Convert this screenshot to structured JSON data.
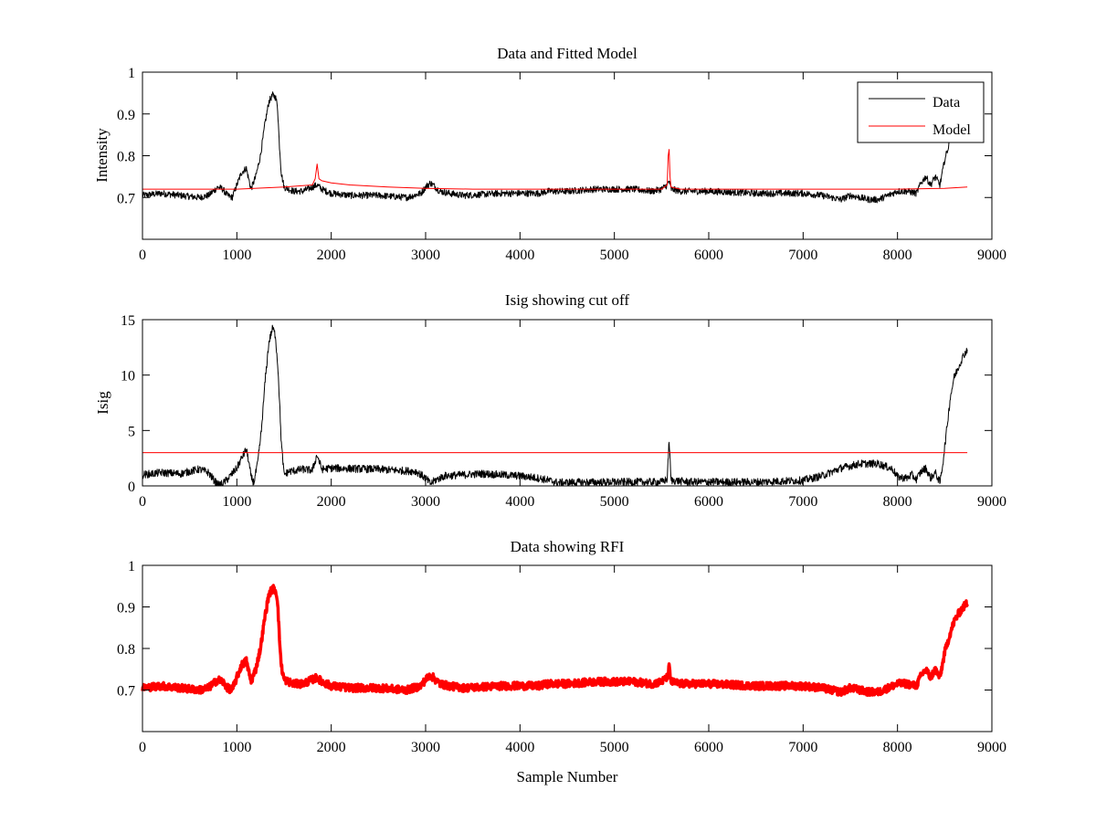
{
  "chart_data": [
    {
      "type": "line",
      "title": "Data and Fitted Model",
      "ylabel": "Intensity",
      "xlabel": "",
      "xlim": [
        0,
        9000
      ],
      "ylim": [
        0.6,
        1.0
      ],
      "xticks": [
        0,
        1000,
        2000,
        3000,
        4000,
        5000,
        6000,
        7000,
        8000,
        9000
      ],
      "xtick_labels": [
        "0",
        "1000",
        "2000",
        "3000",
        "4000",
        "5000",
        "6000",
        "7000",
        "8000",
        "9000"
      ],
      "yticks": [
        0.7,
        0.8,
        0.9,
        1.0
      ],
      "ytick_labels": [
        "0.7",
        "0.8",
        "0.9",
        "1"
      ],
      "legend": {
        "position": "top-right",
        "entries": [
          "Data",
          "Model"
        ]
      },
      "series": [
        {
          "name": "Data",
          "color": "#000000",
          "noise": 0.008,
          "x": [
            0,
            200,
            400,
            600,
            700,
            800,
            850,
            900,
            950,
            1000,
            1050,
            1100,
            1130,
            1150,
            1200,
            1250,
            1300,
            1340,
            1380,
            1410,
            1430,
            1450,
            1470,
            1500,
            1600,
            1700,
            1750,
            1800,
            1850,
            1900,
            2000,
            2200,
            2500,
            2800,
            2950,
            3000,
            3050,
            3080,
            3150,
            3250,
            3400,
            3800,
            4200,
            4300,
            4500,
            4800,
            5000,
            5200,
            5400,
            5500,
            5560,
            5580,
            5600,
            5700,
            6000,
            6500,
            7000,
            7200,
            7400,
            7500,
            7600,
            7700,
            7800,
            7900,
            8000,
            8100,
            8200,
            8250,
            8300,
            8350,
            8400,
            8450,
            8500,
            8550
          ],
          "y": [
            0.705,
            0.71,
            0.705,
            0.7,
            0.705,
            0.725,
            0.72,
            0.705,
            0.7,
            0.73,
            0.76,
            0.77,
            0.74,
            0.72,
            0.75,
            0.8,
            0.88,
            0.93,
            0.945,
            0.94,
            0.92,
            0.83,
            0.76,
            0.725,
            0.715,
            0.715,
            0.72,
            0.725,
            0.73,
            0.72,
            0.71,
            0.705,
            0.705,
            0.7,
            0.71,
            0.725,
            0.735,
            0.73,
            0.715,
            0.71,
            0.705,
            0.71,
            0.71,
            0.715,
            0.715,
            0.72,
            0.72,
            0.72,
            0.715,
            0.72,
            0.73,
            0.74,
            0.72,
            0.715,
            0.715,
            0.71,
            0.71,
            0.705,
            0.695,
            0.705,
            0.7,
            0.695,
            0.695,
            0.705,
            0.715,
            0.715,
            0.71,
            0.735,
            0.75,
            0.73,
            0.75,
            0.73,
            0.79,
            0.83
          ]
        },
        {
          "name": "Model",
          "color": "#ff0000",
          "noise": 0,
          "x": [
            0,
            1000,
            1500,
            1800,
            1830,
            1850,
            1870,
            1900,
            2000,
            2200,
            2600,
            3000,
            3500,
            4000,
            5000,
            5500,
            5560,
            5570,
            5580,
            5590,
            5600,
            5700,
            6000,
            7000,
            8000,
            8500,
            8740
          ],
          "y": [
            0.72,
            0.72,
            0.725,
            0.73,
            0.745,
            0.78,
            0.745,
            0.74,
            0.735,
            0.73,
            0.725,
            0.722,
            0.72,
            0.72,
            0.72,
            0.72,
            0.73,
            0.8,
            0.815,
            0.75,
            0.725,
            0.72,
            0.72,
            0.72,
            0.72,
            0.722,
            0.725
          ]
        }
      ]
    },
    {
      "type": "line",
      "title": "Isig showing cut off",
      "ylabel": "Isig",
      "xlabel": "",
      "xlim": [
        0,
        9000
      ],
      "ylim": [
        0,
        15
      ],
      "xticks": [
        0,
        1000,
        2000,
        3000,
        4000,
        5000,
        6000,
        7000,
        8000,
        9000
      ],
      "xtick_labels": [
        "0",
        "1000",
        "2000",
        "3000",
        "4000",
        "5000",
        "6000",
        "7000",
        "8000",
        "9000"
      ],
      "yticks": [
        0,
        5,
        10,
        15
      ],
      "ytick_labels": [
        "0",
        "5",
        "10",
        "15"
      ],
      "series": [
        {
          "name": "Isig",
          "color": "#000000",
          "noise": 0.35,
          "x": [
            0,
            200,
            400,
            600,
            700,
            750,
            800,
            850,
            900,
            1000,
            1050,
            1100,
            1120,
            1150,
            1180,
            1220,
            1260,
            1300,
            1340,
            1380,
            1410,
            1440,
            1470,
            1500,
            1550,
            1700,
            1800,
            1850,
            1900,
            2000,
            2500,
            2900,
            3000,
            3050,
            3100,
            3200,
            3600,
            4000,
            4200,
            4400,
            5000,
            5500,
            5560,
            5580,
            5600,
            5800,
            6500,
            7000,
            7200,
            7400,
            7600,
            7800,
            7950,
            8000,
            8100,
            8150,
            8200,
            8250,
            8300,
            8350,
            8400,
            8450,
            8480,
            8520,
            8560,
            8600,
            8650,
            8700,
            8740
          ],
          "y": [
            1.0,
            1.2,
            1.1,
            1.5,
            1.2,
            0.6,
            0.1,
            0.2,
            0.6,
            1.6,
            2.5,
            3.3,
            2.5,
            0.8,
            0.3,
            2.0,
            5.0,
            9.5,
            13.0,
            14.3,
            13.5,
            10.0,
            4.0,
            1.0,
            1.3,
            1.5,
            1.4,
            2.8,
            1.5,
            1.6,
            1.5,
            1.3,
            0.7,
            0.2,
            0.5,
            0.9,
            1.1,
            0.9,
            0.7,
            0.3,
            0.35,
            0.35,
            0.6,
            4.2,
            0.5,
            0.35,
            0.35,
            0.5,
            0.9,
            1.6,
            2.0,
            2.0,
            1.5,
            0.8,
            0.7,
            1.0,
            0.6,
            1.3,
            1.6,
            0.7,
            1.2,
            0.3,
            2.0,
            5.0,
            8.0,
            9.8,
            10.8,
            11.8,
            12.3
          ]
        },
        {
          "name": "cut off",
          "color": "#ff0000",
          "noise": 0,
          "x": [
            0,
            8740
          ],
          "y": [
            3,
            3
          ]
        }
      ]
    },
    {
      "type": "line",
      "title": "Data showing RFI",
      "ylabel": "",
      "xlabel": "Sample Number",
      "xlim": [
        0,
        9000
      ],
      "ylim": [
        0.6,
        1.0
      ],
      "xticks": [
        0,
        1000,
        2000,
        3000,
        4000,
        5000,
        6000,
        7000,
        8000,
        9000
      ],
      "xtick_labels": [
        "0",
        "1000",
        "2000",
        "3000",
        "4000",
        "5000",
        "6000",
        "7000",
        "8000",
        "9000"
      ],
      "yticks": [
        0.7,
        0.8,
        0.9,
        1.0
      ],
      "ytick_labels": [
        "0.7",
        "0.8",
        "0.9",
        "1"
      ],
      "series": [
        {
          "name": "RFI",
          "color": "#ff0000",
          "noise": 0.009,
          "x": [
            0,
            200,
            400,
            600,
            700,
            800,
            850,
            900,
            950,
            1000,
            1050,
            1100,
            1130,
            1150,
            1200,
            1250,
            1300,
            1340,
            1380,
            1410,
            1430,
            1450,
            1470,
            1500,
            1600,
            1700,
            1750,
            1800,
            1850,
            1900,
            2000,
            2200,
            2500,
            2800,
            2950,
            3000,
            3050,
            3080,
            3150,
            3250,
            3400,
            3800,
            4200,
            4300,
            4500,
            4800,
            5000,
            5200,
            5400,
            5500,
            5560,
            5580,
            5600,
            5700,
            6000,
            6500,
            7000,
            7200,
            7400,
            7500,
            7600,
            7700,
            7800,
            7900,
            8000,
            8100,
            8200,
            8250,
            8300,
            8350,
            8400,
            8450,
            8500,
            8550,
            8600,
            8650,
            8700,
            8740
          ],
          "y": [
            0.705,
            0.71,
            0.705,
            0.7,
            0.705,
            0.725,
            0.72,
            0.705,
            0.7,
            0.73,
            0.76,
            0.77,
            0.74,
            0.72,
            0.75,
            0.8,
            0.88,
            0.93,
            0.945,
            0.94,
            0.92,
            0.83,
            0.76,
            0.725,
            0.715,
            0.715,
            0.72,
            0.725,
            0.73,
            0.72,
            0.71,
            0.705,
            0.705,
            0.7,
            0.71,
            0.725,
            0.735,
            0.73,
            0.715,
            0.71,
            0.705,
            0.71,
            0.71,
            0.715,
            0.715,
            0.72,
            0.72,
            0.72,
            0.715,
            0.72,
            0.73,
            0.755,
            0.72,
            0.715,
            0.715,
            0.71,
            0.71,
            0.705,
            0.695,
            0.705,
            0.7,
            0.695,
            0.695,
            0.705,
            0.715,
            0.715,
            0.71,
            0.735,
            0.75,
            0.73,
            0.75,
            0.73,
            0.79,
            0.83,
            0.865,
            0.885,
            0.9,
            0.91
          ]
        }
      ]
    }
  ]
}
